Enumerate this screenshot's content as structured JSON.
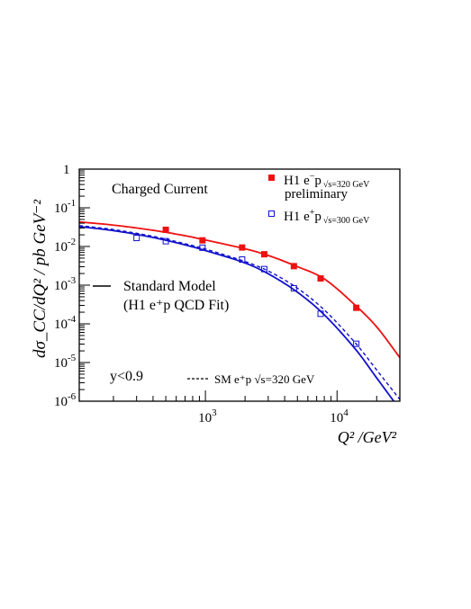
{
  "chart_data": {
    "type": "scatter",
    "title": "Charged Current",
    "xlabel": "Q² /GeV²",
    "ylabel": "dσ_CC/dQ² / pb GeV⁻²",
    "x_scale": "log",
    "y_scale": "log",
    "xlim": [
      110,
      30000
    ],
    "ylim": [
      1e-06,
      1
    ],
    "x_tick_labels": [
      {
        "value": 1000,
        "base": "10",
        "exp": "3"
      },
      {
        "value": 10000,
        "base": "10",
        "exp": "4"
      }
    ],
    "y_tick_labels": [
      {
        "value": 1,
        "base": "1",
        "exp": ""
      },
      {
        "value": 0.1,
        "base": "10",
        "exp": "-1"
      },
      {
        "value": 0.01,
        "base": "10",
        "exp": "-2"
      },
      {
        "value": 0.001,
        "base": "10",
        "exp": "-3"
      },
      {
        "value": 0.0001,
        "base": "10",
        "exp": "-4"
      },
      {
        "value": 1e-05,
        "base": "10",
        "exp": "-5"
      },
      {
        "value": 1e-06,
        "base": "10",
        "exp": "-6"
      }
    ],
    "grid": false,
    "series": [
      {
        "name": "H1 e⁻p √s=320 GeV preliminary",
        "marker": "filled-square",
        "color": "#ee1111",
        "x": [
          500,
          950,
          1900,
          2800,
          4700,
          7500,
          14000
        ],
        "y": [
          0.027,
          0.0144,
          0.0094,
          0.0063,
          0.0031,
          0.00149,
          0.00026
        ]
      },
      {
        "name": "H1 e⁺p √s=300 GeV",
        "marker": "open-square",
        "color": "#1111cc",
        "x": [
          300,
          500,
          950,
          1900,
          2800,
          4700,
          7500,
          14000
        ],
        "y": [
          0.0166,
          0.0137,
          0.0093,
          0.0046,
          0.0026,
          0.00083,
          0.000182,
          3.05e-05
        ]
      }
    ],
    "curves": [
      {
        "name": "SM e⁻p (H1 e⁺p QCD Fit)",
        "style": "solid",
        "color": "#ee1111",
        "x": [
          110,
          200,
          400,
          700,
          1000,
          2000,
          3000,
          5000,
          8000,
          14000,
          20000,
          30000
        ],
        "y": [
          0.0431,
          0.0357,
          0.0262,
          0.019,
          0.0147,
          0.00871,
          0.00586,
          0.00301,
          0.00145,
          0.000286,
          8.35e-05,
          1.34e-05
        ]
      },
      {
        "name": "Standard Model (H1 e⁺p QCD Fit)",
        "style": "solid",
        "color": "#1111cc",
        "x": [
          110,
          200,
          400,
          700,
          1000,
          2000,
          3000,
          5000,
          8000,
          14000,
          20000,
          30000
        ],
        "y": [
          0.0327,
          0.0257,
          0.0171,
          0.011,
          0.00785,
          0.00374,
          0.00197,
          0.000658,
          0.000171,
          2.08e-05,
          4e-06,
          6.12e-07
        ]
      },
      {
        "name": "SM e⁺p √s=320 GeV",
        "style": "dashed",
        "color": "#1111cc",
        "x": [
          110,
          200,
          400,
          700,
          1000,
          2000,
          3000,
          5000,
          8000,
          14000,
          20000,
          30000
        ],
        "y": [
          0.0347,
          0.0274,
          0.0183,
          0.0118,
          0.00858,
          0.00408,
          0.00233,
          0.000836,
          0.000229,
          3.01e-05,
          6.4e-06,
          1.11e-06
        ]
      }
    ],
    "annotations": {
      "process": "Charged Current",
      "cut": "y<0.9"
    },
    "legend": {
      "placement": "top-right",
      "items": [
        {
          "label": "H1  e",
          "sup": "−",
          "tail": "p",
          "sub": "√s=320 GeV",
          "line2": "preliminary",
          "marker": "filled-square",
          "color": "#ee1111"
        },
        {
          "label": "H1  e",
          "sup": "+",
          "tail": "p",
          "sub": "√s=300 GeV",
          "marker": "open-square",
          "color": "#1111cc"
        }
      ],
      "model_lines": [
        "Standard Model",
        "(H1 e⁺p QCD Fit)"
      ],
      "dashed_label": "SM e⁺p √s=320 GeV"
    }
  }
}
